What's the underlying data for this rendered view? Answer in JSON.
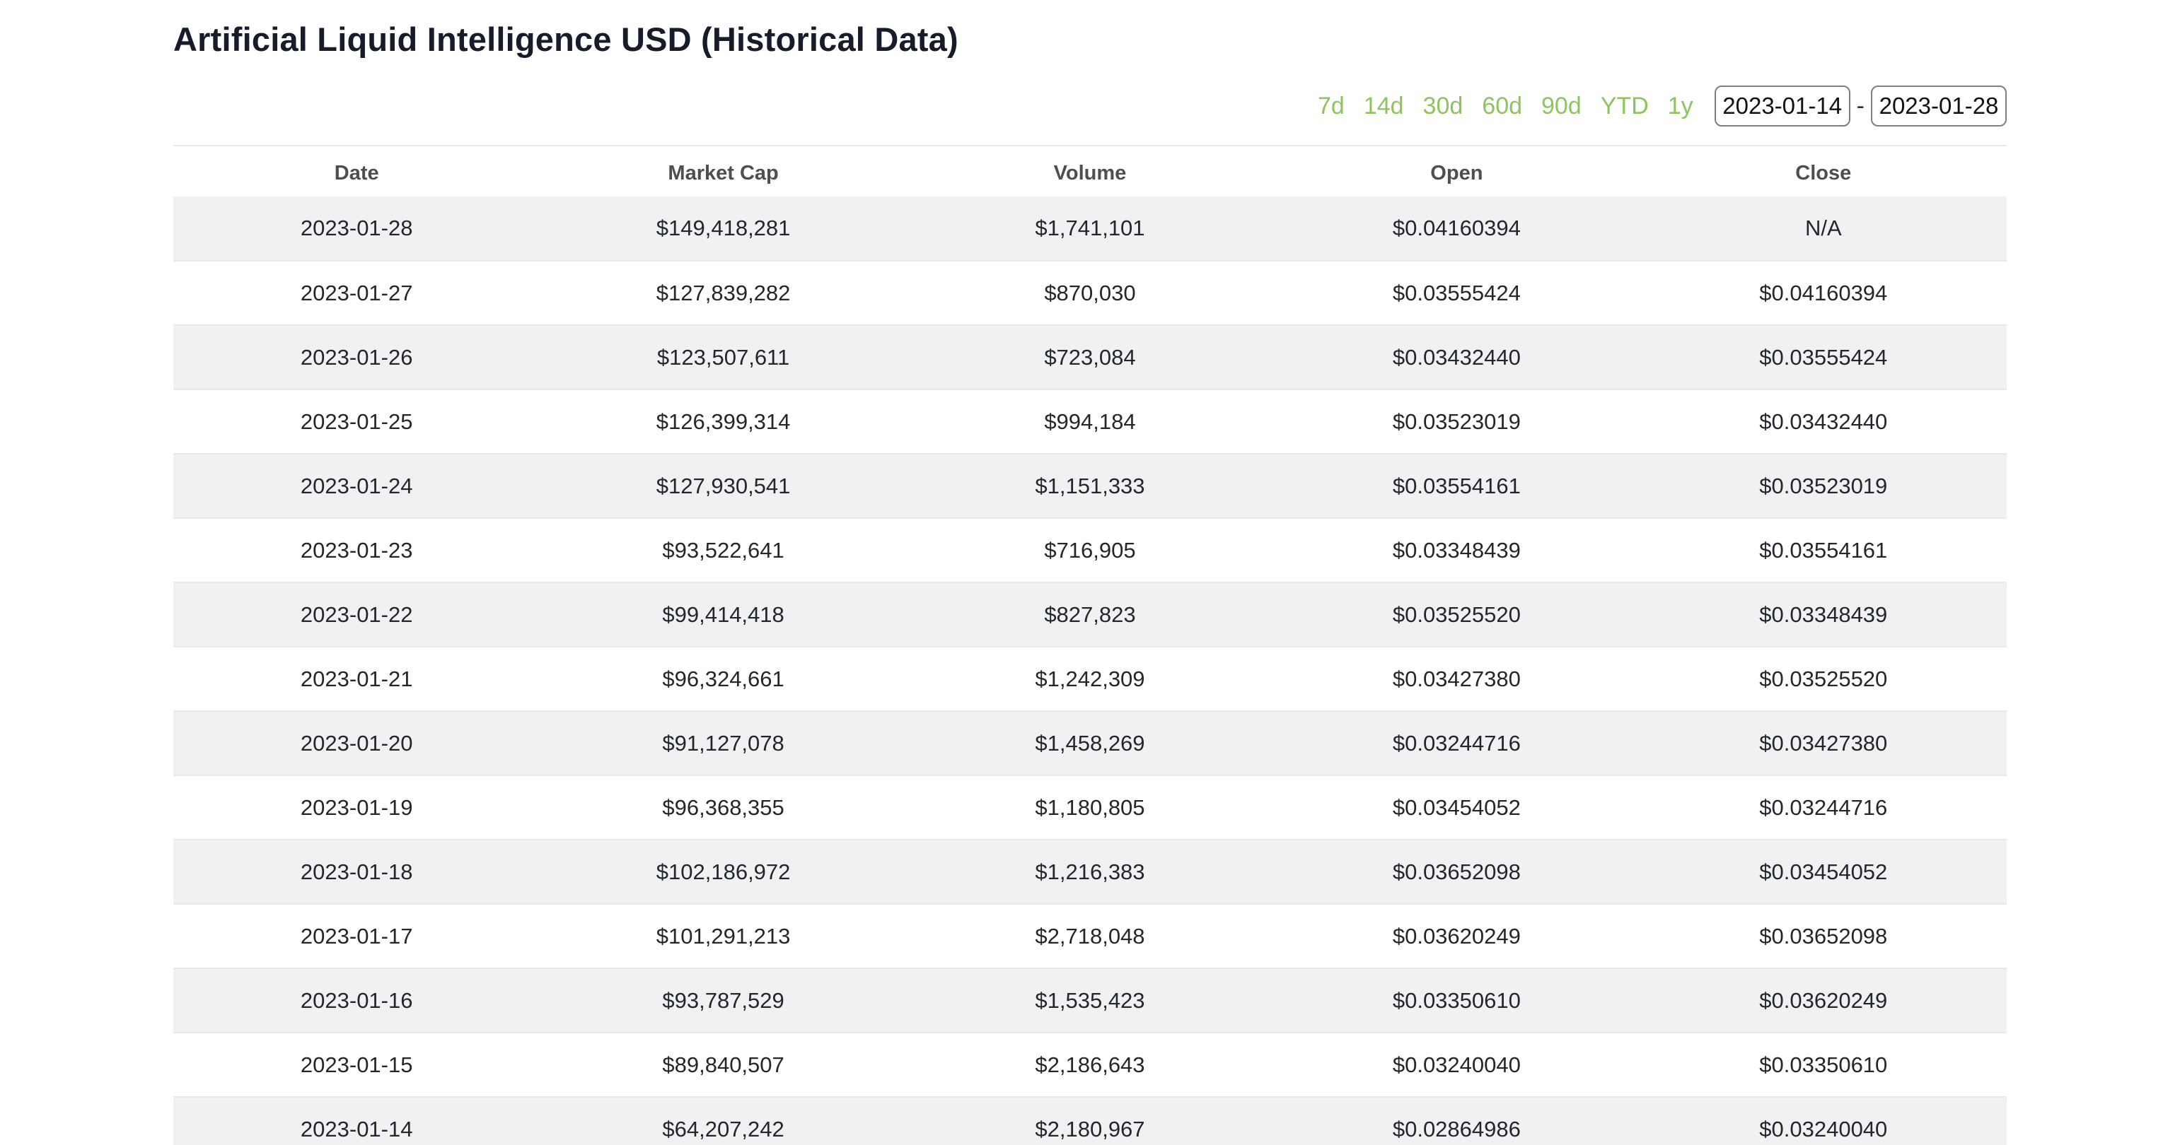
{
  "page": {
    "title": "Artificial Liquid Intelligence USD (Historical Data)"
  },
  "controls": {
    "range_links": [
      "7d",
      "14d",
      "30d",
      "60d",
      "90d",
      "YTD",
      "1y"
    ],
    "date_from": "2023-01-14",
    "date_to": "2023-01-28",
    "separator": "-"
  },
  "colors": {
    "accent_green": "#8ec45f",
    "title_navy": "#171c2b",
    "row_stripe": "#f0f1f2"
  },
  "table": {
    "columns": [
      "Date",
      "Market Cap",
      "Volume",
      "Open",
      "Close"
    ],
    "rows": [
      [
        "2023-01-28",
        "$149,418,281",
        "$1,741,101",
        "$0.04160394",
        "N/A"
      ],
      [
        "2023-01-27",
        "$127,839,282",
        "$870,030",
        "$0.03555424",
        "$0.04160394"
      ],
      [
        "2023-01-26",
        "$123,507,611",
        "$723,084",
        "$0.03432440",
        "$0.03555424"
      ],
      [
        "2023-01-25",
        "$126,399,314",
        "$994,184",
        "$0.03523019",
        "$0.03432440"
      ],
      [
        "2023-01-24",
        "$127,930,541",
        "$1,151,333",
        "$0.03554161",
        "$0.03523019"
      ],
      [
        "2023-01-23",
        "$93,522,641",
        "$716,905",
        "$0.03348439",
        "$0.03554161"
      ],
      [
        "2023-01-22",
        "$99,414,418",
        "$827,823",
        "$0.03525520",
        "$0.03348439"
      ],
      [
        "2023-01-21",
        "$96,324,661",
        "$1,242,309",
        "$0.03427380",
        "$0.03525520"
      ],
      [
        "2023-01-20",
        "$91,127,078",
        "$1,458,269",
        "$0.03244716",
        "$0.03427380"
      ],
      [
        "2023-01-19",
        "$96,368,355",
        "$1,180,805",
        "$0.03454052",
        "$0.03244716"
      ],
      [
        "2023-01-18",
        "$102,186,972",
        "$1,216,383",
        "$0.03652098",
        "$0.03454052"
      ],
      [
        "2023-01-17",
        "$101,291,213",
        "$2,718,048",
        "$0.03620249",
        "$0.03652098"
      ],
      [
        "2023-01-16",
        "$93,787,529",
        "$1,535,423",
        "$0.03350610",
        "$0.03620249"
      ],
      [
        "2023-01-15",
        "$89,840,507",
        "$2,186,643",
        "$0.03240040",
        "$0.03350610"
      ],
      [
        "2023-01-14",
        "$64,207,242",
        "$2,180,967",
        "$0.02864986",
        "$0.03240040"
      ]
    ]
  }
}
